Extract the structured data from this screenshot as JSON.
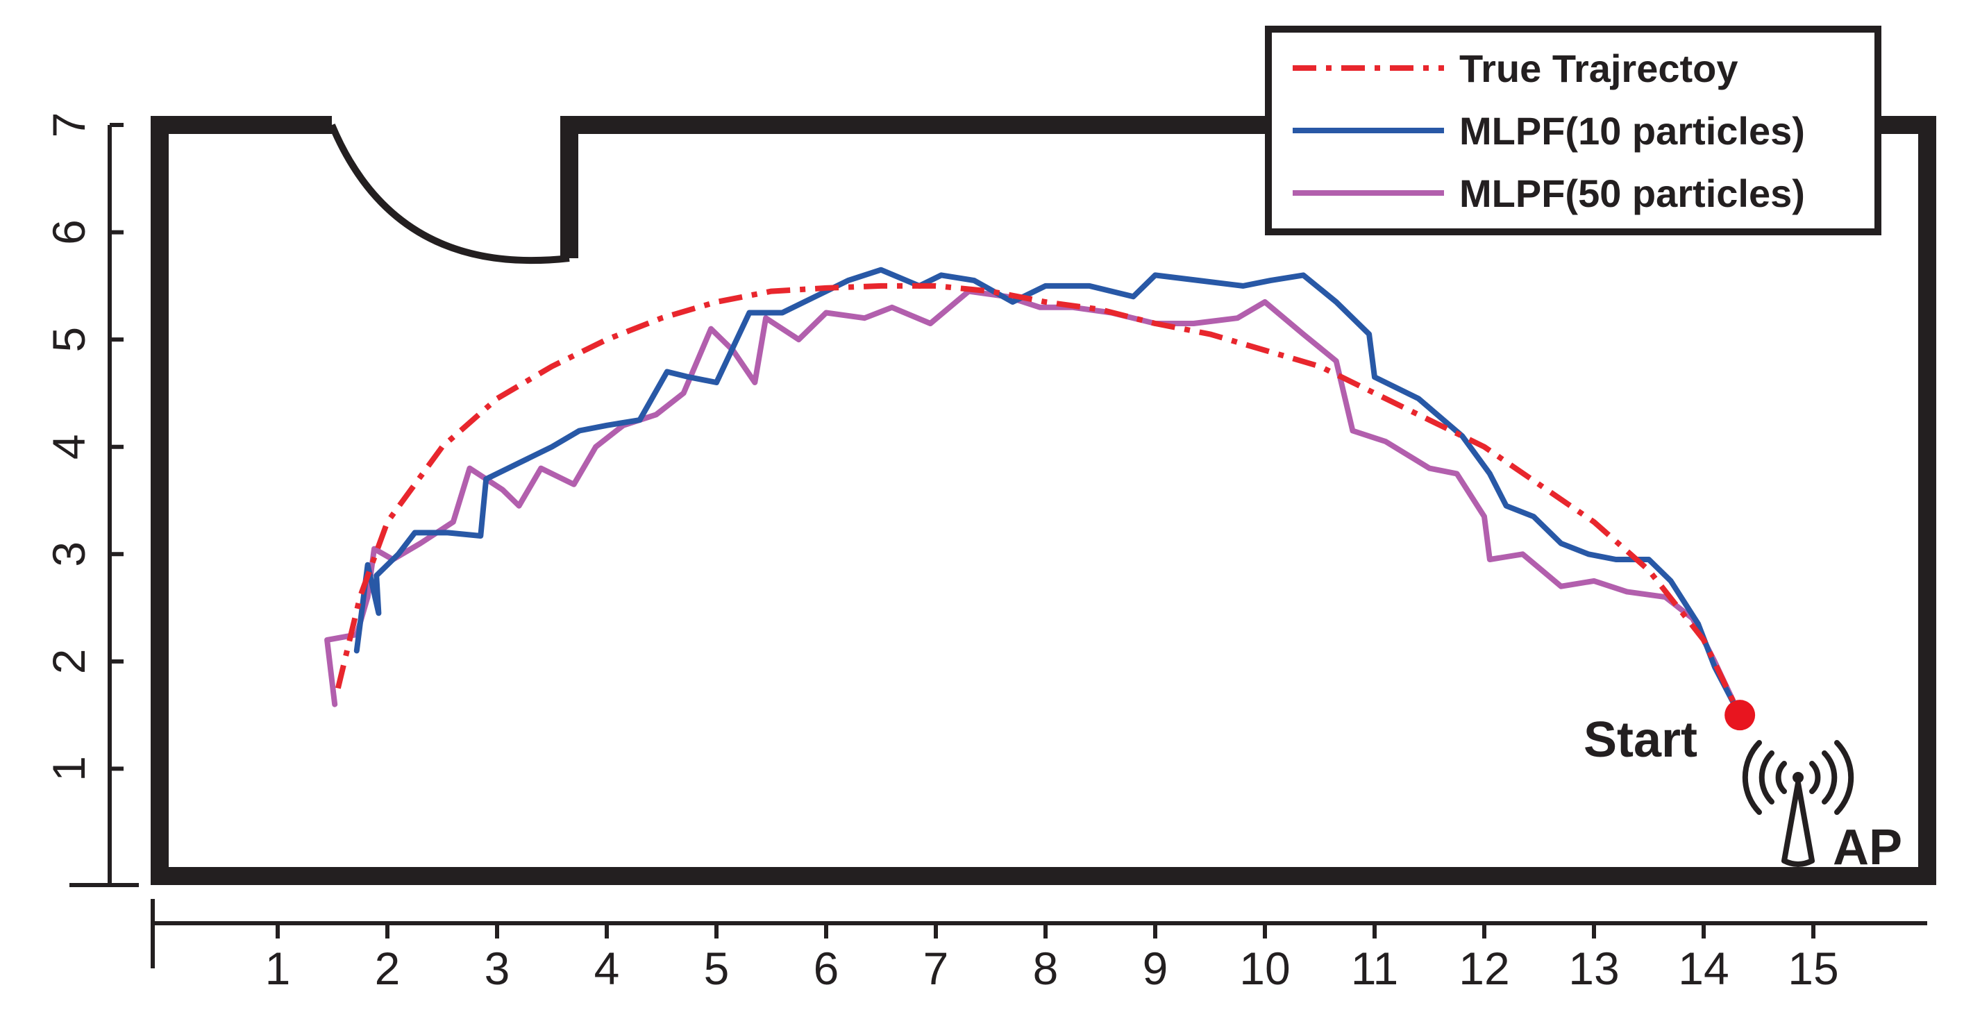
{
  "chart_data": {
    "type": "line",
    "title": "",
    "xlabel": "",
    "ylabel": "",
    "xlim": [
      0,
      15.9
    ],
    "ylim": [
      0,
      7
    ],
    "x_ticks": [
      1,
      2,
      3,
      4,
      5,
      6,
      7,
      8,
      9,
      10,
      11,
      12,
      13,
      14,
      15
    ],
    "y_ticks": [
      1,
      2,
      3,
      4,
      5,
      6,
      7
    ],
    "grid": false,
    "legend_position": "top-right",
    "series": [
      {
        "name": "True Trajrectoy",
        "color": "#e8262d",
        "style": "dash-dot",
        "points": [
          [
            1.55,
            1.75
          ],
          [
            1.75,
            2.6
          ],
          [
            2.0,
            3.3
          ],
          [
            2.5,
            4.0
          ],
          [
            3.0,
            4.45
          ],
          [
            3.5,
            4.75
          ],
          [
            4.0,
            5.0
          ],
          [
            4.5,
            5.2
          ],
          [
            5.0,
            5.35
          ],
          [
            5.5,
            5.45
          ],
          [
            6.0,
            5.48
          ],
          [
            6.5,
            5.5
          ],
          [
            7.0,
            5.5
          ],
          [
            7.5,
            5.45
          ],
          [
            8.0,
            5.35
          ],
          [
            8.5,
            5.28
          ],
          [
            9.0,
            5.15
          ],
          [
            9.5,
            5.05
          ],
          [
            10.0,
            4.9
          ],
          [
            10.5,
            4.75
          ],
          [
            11.0,
            4.5
          ],
          [
            11.5,
            4.25
          ],
          [
            12.0,
            4.0
          ],
          [
            12.5,
            3.65
          ],
          [
            13.0,
            3.3
          ],
          [
            13.5,
            2.85
          ],
          [
            14.0,
            2.2
          ],
          [
            14.33,
            1.5
          ]
        ]
      },
      {
        "name": "MLPF(10 particles)",
        "color": "#2858a6",
        "style": "solid",
        "points": [
          [
            1.72,
            2.1
          ],
          [
            1.82,
            2.9
          ],
          [
            1.92,
            2.45
          ],
          [
            1.9,
            2.8
          ],
          [
            2.1,
            3.0
          ],
          [
            2.25,
            3.2
          ],
          [
            2.55,
            3.2
          ],
          [
            2.85,
            3.17
          ],
          [
            2.9,
            3.7
          ],
          [
            3.2,
            3.85
          ],
          [
            3.5,
            4.0
          ],
          [
            3.75,
            4.15
          ],
          [
            4.0,
            4.2
          ],
          [
            4.3,
            4.25
          ],
          [
            4.55,
            4.7
          ],
          [
            4.75,
            4.65
          ],
          [
            5.0,
            4.6
          ],
          [
            5.3,
            5.25
          ],
          [
            5.6,
            5.25
          ],
          [
            5.9,
            5.4
          ],
          [
            6.2,
            5.55
          ],
          [
            6.5,
            5.65
          ],
          [
            6.85,
            5.5
          ],
          [
            7.05,
            5.6
          ],
          [
            7.35,
            5.55
          ],
          [
            7.7,
            5.35
          ],
          [
            8.0,
            5.5
          ],
          [
            8.4,
            5.5
          ],
          [
            8.8,
            5.4
          ],
          [
            9.0,
            5.6
          ],
          [
            9.4,
            5.55
          ],
          [
            9.8,
            5.5
          ],
          [
            10.05,
            5.55
          ],
          [
            10.35,
            5.6
          ],
          [
            10.65,
            5.35
          ],
          [
            10.95,
            5.05
          ],
          [
            11.0,
            4.65
          ],
          [
            11.4,
            4.45
          ],
          [
            11.8,
            4.1
          ],
          [
            12.05,
            3.75
          ],
          [
            12.2,
            3.45
          ],
          [
            12.45,
            3.35
          ],
          [
            12.7,
            3.1
          ],
          [
            12.95,
            3.0
          ],
          [
            13.2,
            2.95
          ],
          [
            13.5,
            2.95
          ],
          [
            13.7,
            2.75
          ],
          [
            13.95,
            2.35
          ],
          [
            14.1,
            1.95
          ],
          [
            14.33,
            1.5
          ]
        ]
      },
      {
        "name": "MLPF(50 particles)",
        "color": "#b25fad",
        "style": "solid",
        "points": [
          [
            1.52,
            1.6
          ],
          [
            1.45,
            2.2
          ],
          [
            1.72,
            2.25
          ],
          [
            1.82,
            2.6
          ],
          [
            1.88,
            3.05
          ],
          [
            2.05,
            2.95
          ],
          [
            2.3,
            3.1
          ],
          [
            2.6,
            3.3
          ],
          [
            2.75,
            3.8
          ],
          [
            3.05,
            3.6
          ],
          [
            3.2,
            3.45
          ],
          [
            3.4,
            3.8
          ],
          [
            3.7,
            3.65
          ],
          [
            3.9,
            4.0
          ],
          [
            4.15,
            4.2
          ],
          [
            4.45,
            4.3
          ],
          [
            4.7,
            4.5
          ],
          [
            4.95,
            5.1
          ],
          [
            5.15,
            4.9
          ],
          [
            5.35,
            4.6
          ],
          [
            5.45,
            5.2
          ],
          [
            5.75,
            5.0
          ],
          [
            6.0,
            5.25
          ],
          [
            6.35,
            5.2
          ],
          [
            6.6,
            5.3
          ],
          [
            6.95,
            5.15
          ],
          [
            7.3,
            5.45
          ],
          [
            7.65,
            5.4
          ],
          [
            7.95,
            5.3
          ],
          [
            8.25,
            5.3
          ],
          [
            8.6,
            5.25
          ],
          [
            9.0,
            5.15
          ],
          [
            9.35,
            5.15
          ],
          [
            9.75,
            5.2
          ],
          [
            10.0,
            5.35
          ],
          [
            10.35,
            5.05
          ],
          [
            10.65,
            4.8
          ],
          [
            10.8,
            4.15
          ],
          [
            11.1,
            4.05
          ],
          [
            11.5,
            3.8
          ],
          [
            11.75,
            3.75
          ],
          [
            12.0,
            3.35
          ],
          [
            12.05,
            2.95
          ],
          [
            12.35,
            3.0
          ],
          [
            12.7,
            2.7
          ],
          [
            13.0,
            2.75
          ],
          [
            13.3,
            2.65
          ],
          [
            13.65,
            2.6
          ],
          [
            13.9,
            2.4
          ],
          [
            14.1,
            2.0
          ],
          [
            14.33,
            1.5
          ]
        ]
      }
    ],
    "annotations": {
      "start_label": "Start",
      "start_point": [
        14.33,
        1.5
      ],
      "ap_label": "AP",
      "marker_color": "#e8151f"
    }
  }
}
